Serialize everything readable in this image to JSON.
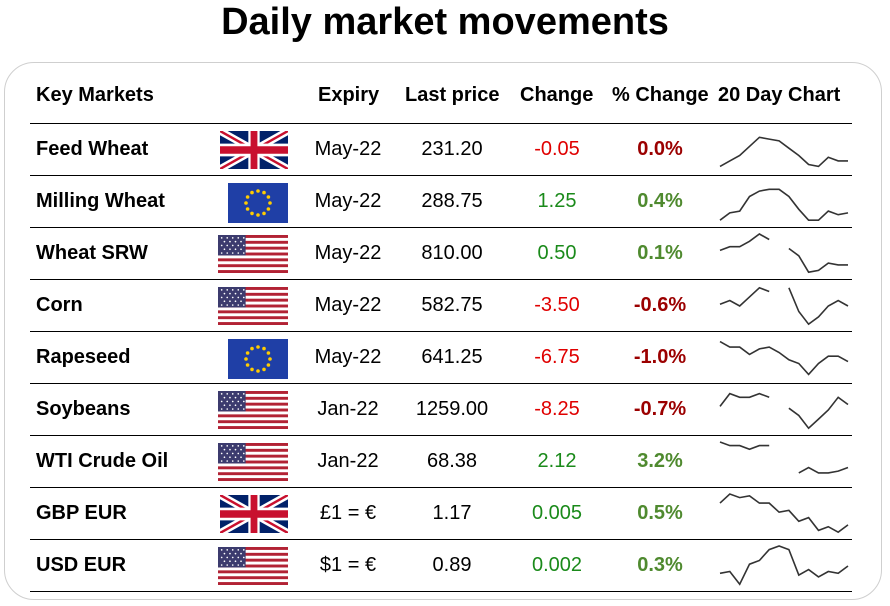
{
  "title": "Daily market movements",
  "headers": {
    "market": "Key Markets",
    "expiry": "Expiry",
    "last_price": "Last price",
    "change": "Change",
    "pct_change": "% Change",
    "chart": "20 Day Chart"
  },
  "colors": {
    "negative_change": "#e00000",
    "positive_change": "#1a8a1a",
    "negative_pct": "#9b0000",
    "positive_pct": "#4f8a2f"
  },
  "rows": [
    {
      "name": "Feed Wheat",
      "flag": "uk-flag-icon",
      "expiry": "May-22",
      "price": "231.20",
      "change": "-0.05",
      "pct": "0.0%",
      "change_dir": "neg",
      "pct_dir": "neg",
      "spark": [
        2,
        5,
        8,
        13,
        18,
        17,
        16,
        12,
        8,
        3,
        2,
        7,
        5,
        5
      ]
    },
    {
      "name": "Milling Wheat",
      "flag": "eu-flag-icon",
      "expiry": "May-22",
      "price": "288.75",
      "change": "1.25",
      "pct": "0.4%",
      "change_dir": "pos",
      "pct_dir": "pos",
      "spark": [
        1,
        5,
        6,
        14,
        17,
        18,
        18,
        14,
        7,
        1,
        1,
        6,
        4,
        5
      ]
    },
    {
      "name": "Wheat SRW",
      "flag": "us-flag-icon",
      "expiry": "May-22",
      "price": "810.00",
      "change": "0.50",
      "pct": "0.1%",
      "change_dir": "pos",
      "pct_dir": "pos",
      "spark": [
        13,
        15,
        15,
        18,
        22,
        19,
        null,
        14,
        10,
        1,
        2,
        6,
        5,
        5
      ]
    },
    {
      "name": "Corn",
      "flag": "us-flag-icon",
      "expiry": "May-22",
      "price": "582.75",
      "change": "-3.50",
      "pct": "-0.6%",
      "change_dir": "neg",
      "pct_dir": "neg",
      "spark": [
        12,
        14,
        11,
        16,
        21,
        19,
        null,
        21,
        8,
        1,
        5,
        11,
        14,
        11
      ]
    },
    {
      "name": "Rapeseed",
      "flag": "eu-flag-icon",
      "expiry": "May-22",
      "price": "641.25",
      "change": "-6.75",
      "pct": "-1.0%",
      "change_dir": "neg",
      "pct_dir": "neg",
      "spark": [
        20,
        17,
        17,
        13,
        16,
        17,
        14,
        10,
        8,
        2,
        8,
        12,
        12,
        9
      ]
    },
    {
      "name": "Soybeans",
      "flag": "us-flag-icon",
      "expiry": "Jan-22",
      "price": "1259.00",
      "change": "-8.25",
      "pct": "-0.7%",
      "change_dir": "neg",
      "pct_dir": "neg",
      "spark": [
        13,
        20,
        18,
        18,
        20,
        18,
        null,
        12,
        8,
        1,
        6,
        11,
        18,
        14
      ]
    },
    {
      "name": "WTI Crude Oil",
      "flag": "us-flag-icon",
      "expiry": "Jan-22",
      "price": "68.38",
      "change": "2.12",
      "pct": "3.2%",
      "change_dir": "pos",
      "pct_dir": "pos",
      "spark": [
        22,
        20,
        20,
        18,
        20,
        20,
        null,
        null,
        5,
        8,
        5,
        5,
        6,
        8
      ]
    },
    {
      "name": "GBP EUR",
      "flag": "uk-flag-icon",
      "expiry": "£1 = €",
      "price": "1.17",
      "change": "0.005",
      "pct": "0.5%",
      "change_dir": "pos",
      "pct_dir": "pos",
      "spark": [
        17,
        22,
        20,
        21,
        17,
        17,
        12,
        13,
        7,
        9,
        2,
        4,
        1,
        5
      ]
    },
    {
      "name": "USD EUR",
      "flag": "us-flag-icon",
      "expiry": "$1 = €",
      "price": "0.89",
      "change": "0.002",
      "pct": "0.3%",
      "change_dir": "pos",
      "pct_dir": "pos",
      "spark": [
        7,
        8,
        1,
        12,
        14,
        20,
        22,
        20,
        6,
        9,
        5,
        8,
        7,
        11
      ]
    }
  ]
}
